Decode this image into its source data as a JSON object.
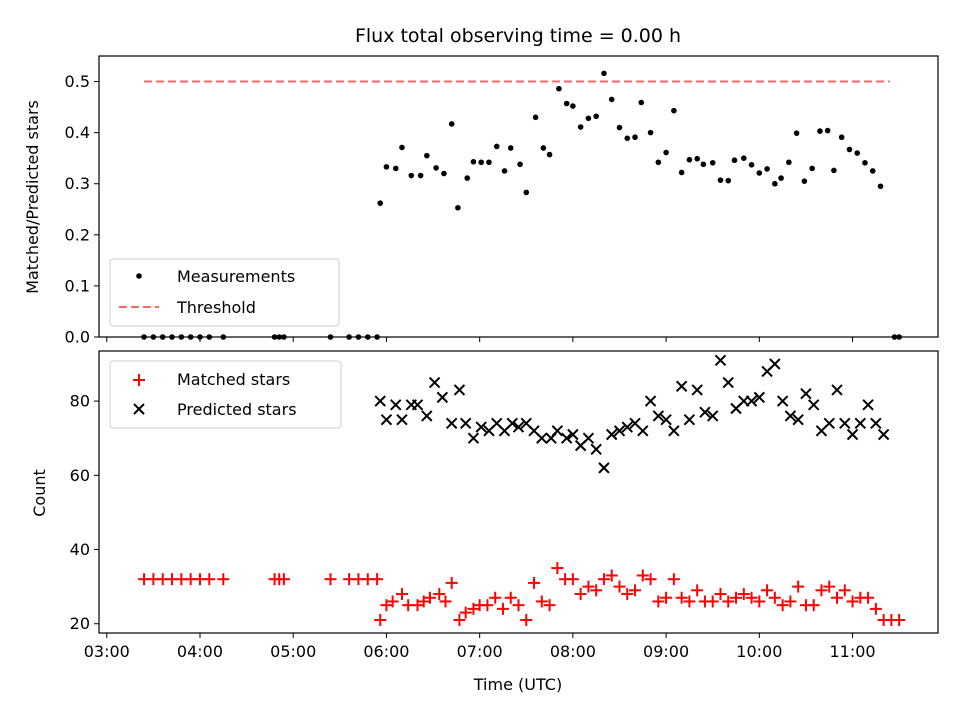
{
  "chart_data": [
    {
      "type": "scatter",
      "title": "Flux total observing time = 0.00 h",
      "xlabel": "",
      "ylabel": "Matched/Predicted stars",
      "xlim": [
        "02:55",
        "11:55"
      ],
      "ylim": [
        0,
        0.55
      ],
      "yticks": [
        "0.0",
        "0.1",
        "0.2",
        "0.3",
        "0.4",
        "0.5"
      ],
      "legend_position": "lower-left",
      "series": [
        {
          "name": "Measurements",
          "marker": "dot",
          "color": "#000000",
          "points": [
            [
              "03:24",
              0.0
            ],
            [
              "03:30",
              0.0
            ],
            [
              "03:36",
              0.0
            ],
            [
              "03:42",
              0.0
            ],
            [
              "03:48",
              0.0
            ],
            [
              "03:54",
              0.0
            ],
            [
              "04:00",
              0.0
            ],
            [
              "04:06",
              0.0
            ],
            [
              "04:15",
              0.0
            ],
            [
              "04:48",
              0.0
            ],
            [
              "04:51",
              0.0
            ],
            [
              "04:54",
              0.0
            ],
            [
              "05:24",
              0.0
            ],
            [
              "05:36",
              0.0
            ],
            [
              "05:42",
              0.0
            ],
            [
              "05:48",
              0.0
            ],
            [
              "05:54",
              0.0
            ],
            [
              "05:56",
              0.262
            ],
            [
              "06:00",
              0.333
            ],
            [
              "06:06",
              0.33
            ],
            [
              "06:10",
              0.371
            ],
            [
              "06:16",
              0.316
            ],
            [
              "06:22",
              0.316
            ],
            [
              "06:26",
              0.355
            ],
            [
              "06:32",
              0.331
            ],
            [
              "06:37",
              0.32
            ],
            [
              "06:42",
              0.417
            ],
            [
              "06:46",
              0.253
            ],
            [
              "06:52",
              0.311
            ],
            [
              "06:56",
              0.343
            ],
            [
              "07:01",
              0.342
            ],
            [
              "07:06",
              0.342
            ],
            [
              "07:11",
              0.373
            ],
            [
              "07:16",
              0.325
            ],
            [
              "07:20",
              0.37
            ],
            [
              "07:26",
              0.338
            ],
            [
              "07:30",
              0.283
            ],
            [
              "07:36",
              0.43
            ],
            [
              "07:41",
              0.37
            ],
            [
              "07:45",
              0.357
            ],
            [
              "07:51",
              0.486
            ],
            [
              "07:56",
              0.457
            ],
            [
              "08:00",
              0.452
            ],
            [
              "08:05",
              0.411
            ],
            [
              "08:10",
              0.428
            ],
            [
              "08:15",
              0.432
            ],
            [
              "08:20",
              0.516
            ],
            [
              "08:25",
              0.465
            ],
            [
              "08:30",
              0.41
            ],
            [
              "08:35",
              0.389
            ],
            [
              "08:40",
              0.391
            ],
            [
              "08:44",
              0.459
            ],
            [
              "08:50",
              0.4
            ],
            [
              "08:55",
              0.342
            ],
            [
              "09:00",
              0.361
            ],
            [
              "09:05",
              0.443
            ],
            [
              "09:10",
              0.322
            ],
            [
              "09:15",
              0.347
            ],
            [
              "09:20",
              0.349
            ],
            [
              "09:24",
              0.338
            ],
            [
              "09:30",
              0.341
            ],
            [
              "09:35",
              0.307
            ],
            [
              "09:40",
              0.306
            ],
            [
              "09:44",
              0.346
            ],
            [
              "09:50",
              0.35
            ],
            [
              "09:55",
              0.337
            ],
            [
              "10:00",
              0.321
            ],
            [
              "10:05",
              0.329
            ],
            [
              "10:10",
              0.3
            ],
            [
              "10:14",
              0.311
            ],
            [
              "10:19",
              0.342
            ],
            [
              "10:24",
              0.399
            ],
            [
              "10:29",
              0.305
            ],
            [
              "10:34",
              0.33
            ],
            [
              "10:39",
              0.403
            ],
            [
              "10:44",
              0.404
            ],
            [
              "10:48",
              0.326
            ],
            [
              "10:53",
              0.391
            ],
            [
              "10:58",
              0.367
            ],
            [
              "11:03",
              0.36
            ],
            [
              "11:08",
              0.341
            ],
            [
              "11:13",
              0.325
            ],
            [
              "11:18",
              0.295
            ],
            [
              "11:27",
              0.0
            ],
            [
              "11:30",
              0.0
            ]
          ]
        },
        {
          "name": "Threshold",
          "marker": "dashed-line",
          "color": "#ff6666",
          "points": [
            [
              "03:24",
              0.5
            ],
            [
              "11:24",
              0.5
            ]
          ]
        }
      ]
    },
    {
      "type": "scatter",
      "title": "",
      "xlabel": "Time (UTC)",
      "ylabel": "Count",
      "xlim": [
        "02:55",
        "11:55"
      ],
      "ylim": [
        17.5,
        93.5
      ],
      "yticks": [
        "20",
        "40",
        "60",
        "80"
      ],
      "xticks": [
        "03:00",
        "04:00",
        "05:00",
        "06:00",
        "07:00",
        "08:00",
        "09:00",
        "10:00",
        "11:00"
      ],
      "legend_position": "upper-left",
      "series": [
        {
          "name": "Matched stars",
          "marker": "plus",
          "color": "#ff0000",
          "points": [
            [
              "03:24",
              32
            ],
            [
              "03:30",
              32
            ],
            [
              "03:36",
              32
            ],
            [
              "03:42",
              32
            ],
            [
              "03:48",
              32
            ],
            [
              "03:54",
              32
            ],
            [
              "04:00",
              32
            ],
            [
              "04:06",
              32
            ],
            [
              "04:15",
              32
            ],
            [
              "04:48",
              32
            ],
            [
              "04:51",
              32
            ],
            [
              "04:54",
              32
            ],
            [
              "05:24",
              32
            ],
            [
              "05:36",
              32
            ],
            [
              "05:42",
              32
            ],
            [
              "05:48",
              32
            ],
            [
              "05:54",
              32
            ],
            [
              "05:56",
              21
            ],
            [
              "06:00",
              25
            ],
            [
              "06:04",
              26
            ],
            [
              "06:10",
              28
            ],
            [
              "06:14",
              25
            ],
            [
              "06:20",
              25
            ],
            [
              "06:24",
              26
            ],
            [
              "06:28",
              27
            ],
            [
              "06:34",
              28
            ],
            [
              "06:38",
              26
            ],
            [
              "06:42",
              31
            ],
            [
              "06:47",
              21
            ],
            [
              "06:51",
              23
            ],
            [
              "06:56",
              24
            ],
            [
              "07:00",
              25
            ],
            [
              "07:05",
              25
            ],
            [
              "07:10",
              27
            ],
            [
              "07:15",
              24
            ],
            [
              "07:20",
              27
            ],
            [
              "07:25",
              25
            ],
            [
              "07:30",
              21
            ],
            [
              "07:35",
              31
            ],
            [
              "07:40",
              26
            ],
            [
              "07:45",
              25
            ],
            [
              "07:50",
              35
            ],
            [
              "07:55",
              32
            ],
            [
              "08:00",
              32
            ],
            [
              "08:05",
              28
            ],
            [
              "08:10",
              30
            ],
            [
              "08:15",
              29
            ],
            [
              "08:20",
              32
            ],
            [
              "08:25",
              33
            ],
            [
              "08:30",
              30
            ],
            [
              "08:35",
              28
            ],
            [
              "08:40",
              29
            ],
            [
              "08:45",
              33
            ],
            [
              "08:50",
              32
            ],
            [
              "08:55",
              26
            ],
            [
              "09:00",
              27
            ],
            [
              "09:05",
              32
            ],
            [
              "09:10",
              27
            ],
            [
              "09:15",
              26
            ],
            [
              "09:20",
              29
            ],
            [
              "09:25",
              26
            ],
            [
              "09:30",
              26
            ],
            [
              "09:35",
              28
            ],
            [
              "09:40",
              26
            ],
            [
              "09:45",
              27
            ],
            [
              "09:50",
              28
            ],
            [
              "09:55",
              27
            ],
            [
              "10:00",
              26
            ],
            [
              "10:05",
              29
            ],
            [
              "10:10",
              27
            ],
            [
              "10:15",
              25
            ],
            [
              "10:20",
              26
            ],
            [
              "10:25",
              30
            ],
            [
              "10:30",
              25
            ],
            [
              "10:35",
              25
            ],
            [
              "10:40",
              29
            ],
            [
              "10:45",
              30
            ],
            [
              "10:50",
              27
            ],
            [
              "10:55",
              29
            ],
            [
              "11:00",
              26
            ],
            [
              "11:05",
              27
            ],
            [
              "11:10",
              27
            ],
            [
              "11:15",
              24
            ],
            [
              "11:20",
              21
            ],
            [
              "11:25",
              21
            ],
            [
              "11:30",
              21
            ]
          ]
        },
        {
          "name": "Predicted stars",
          "marker": "x",
          "color": "#000000",
          "points": [
            [
              "05:56",
              80
            ],
            [
              "06:00",
              75
            ],
            [
              "06:06",
              79
            ],
            [
              "06:10",
              75
            ],
            [
              "06:16",
              79
            ],
            [
              "06:20",
              79
            ],
            [
              "06:26",
              76
            ],
            [
              "06:31",
              85
            ],
            [
              "06:36",
              81
            ],
            [
              "06:42",
              74
            ],
            [
              "06:47",
              83
            ],
            [
              "06:51",
              74
            ],
            [
              "06:56",
              70
            ],
            [
              "07:01",
              73
            ],
            [
              "07:06",
              72
            ],
            [
              "07:11",
              74
            ],
            [
              "07:16",
              72
            ],
            [
              "07:21",
              74
            ],
            [
              "07:25",
              73
            ],
            [
              "07:30",
              74
            ],
            [
              "07:35",
              72
            ],
            [
              "07:40",
              70
            ],
            [
              "07:46",
              70
            ],
            [
              "07:50",
              72
            ],
            [
              "07:56",
              70
            ],
            [
              "08:00",
              71
            ],
            [
              "08:05",
              68
            ],
            [
              "08:10",
              70
            ],
            [
              "08:15",
              67
            ],
            [
              "08:20",
              62
            ],
            [
              "08:25",
              71
            ],
            [
              "08:30",
              72
            ],
            [
              "08:35",
              73
            ],
            [
              "08:40",
              74
            ],
            [
              "08:45",
              72
            ],
            [
              "08:50",
              80
            ],
            [
              "08:55",
              76
            ],
            [
              "09:00",
              75
            ],
            [
              "09:05",
              72
            ],
            [
              "09:10",
              84
            ],
            [
              "09:15",
              75
            ],
            [
              "09:20",
              83
            ],
            [
              "09:25",
              77
            ],
            [
              "09:30",
              76
            ],
            [
              "09:35",
              91
            ],
            [
              "09:40",
              85
            ],
            [
              "09:45",
              78
            ],
            [
              "09:50",
              80
            ],
            [
              "09:55",
              80
            ],
            [
              "10:00",
              81
            ],
            [
              "10:05",
              88
            ],
            [
              "10:10",
              90
            ],
            [
              "10:15",
              80
            ],
            [
              "10:20",
              76
            ],
            [
              "10:25",
              75
            ],
            [
              "10:30",
              82
            ],
            [
              "10:35",
              79
            ],
            [
              "10:40",
              72
            ],
            [
              "10:45",
              74
            ],
            [
              "10:50",
              83
            ],
            [
              "10:55",
              74
            ],
            [
              "11:00",
              71
            ],
            [
              "11:05",
              74
            ],
            [
              "11:10",
              79
            ],
            [
              "11:15",
              74
            ],
            [
              "11:20",
              71
            ]
          ]
        }
      ]
    }
  ]
}
